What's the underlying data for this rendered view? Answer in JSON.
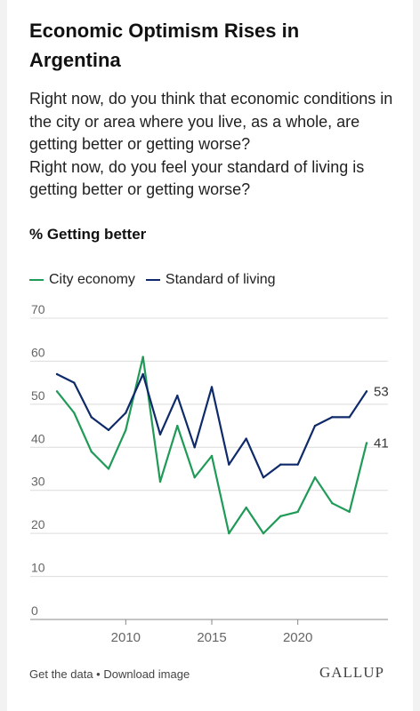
{
  "header": {
    "title": "Economic Optimism Rises in Argentina",
    "question_1": "Right now, do you think that economic conditions in the city or area where you live, as a whole, are getting better or getting worse?",
    "question_2": "Right now, do you feel your standard of living is getting better or getting worse?",
    "subtitle": "% Getting better"
  },
  "footer": {
    "get_data": "Get the data",
    "separator": " • ",
    "download": "Download image",
    "brand": "GALLUP"
  },
  "colors": {
    "city_economy": "#1f9a57",
    "standard_of_living": "#0f2a6b",
    "grid": "#dcdcdc",
    "axis_text": "#666666"
  },
  "chart_data": {
    "type": "line",
    "title": "Economic Optimism Rises in Argentina",
    "subtitle": "% Getting better",
    "xlabel": "",
    "ylabel": "",
    "xlim": [
      2006,
      2024
    ],
    "ylim": [
      0,
      70
    ],
    "y_ticks": [
      0,
      10,
      20,
      30,
      40,
      50,
      60,
      70
    ],
    "x_ticks": [
      2010,
      2015,
      2020
    ],
    "grid": true,
    "legend_position": "top-left",
    "x": [
      2006,
      2007,
      2008,
      2009,
      2010,
      2011,
      2012,
      2013,
      2014,
      2015,
      2016,
      2017,
      2018,
      2019,
      2020,
      2021,
      2022,
      2023,
      2024
    ],
    "series": [
      {
        "name": "City economy",
        "values": [
          53,
          48,
          39,
          35,
          44,
          61,
          32,
          45,
          33,
          38,
          20,
          26,
          20,
          24,
          25,
          33,
          27,
          25,
          41
        ],
        "end_label": "41"
      },
      {
        "name": "Standard of living",
        "values": [
          57,
          55,
          47,
          44,
          48,
          57,
          43,
          52,
          40,
          54,
          36,
          42,
          33,
          36,
          36,
          45,
          47,
          47,
          53
        ],
        "end_label": "53"
      }
    ]
  }
}
